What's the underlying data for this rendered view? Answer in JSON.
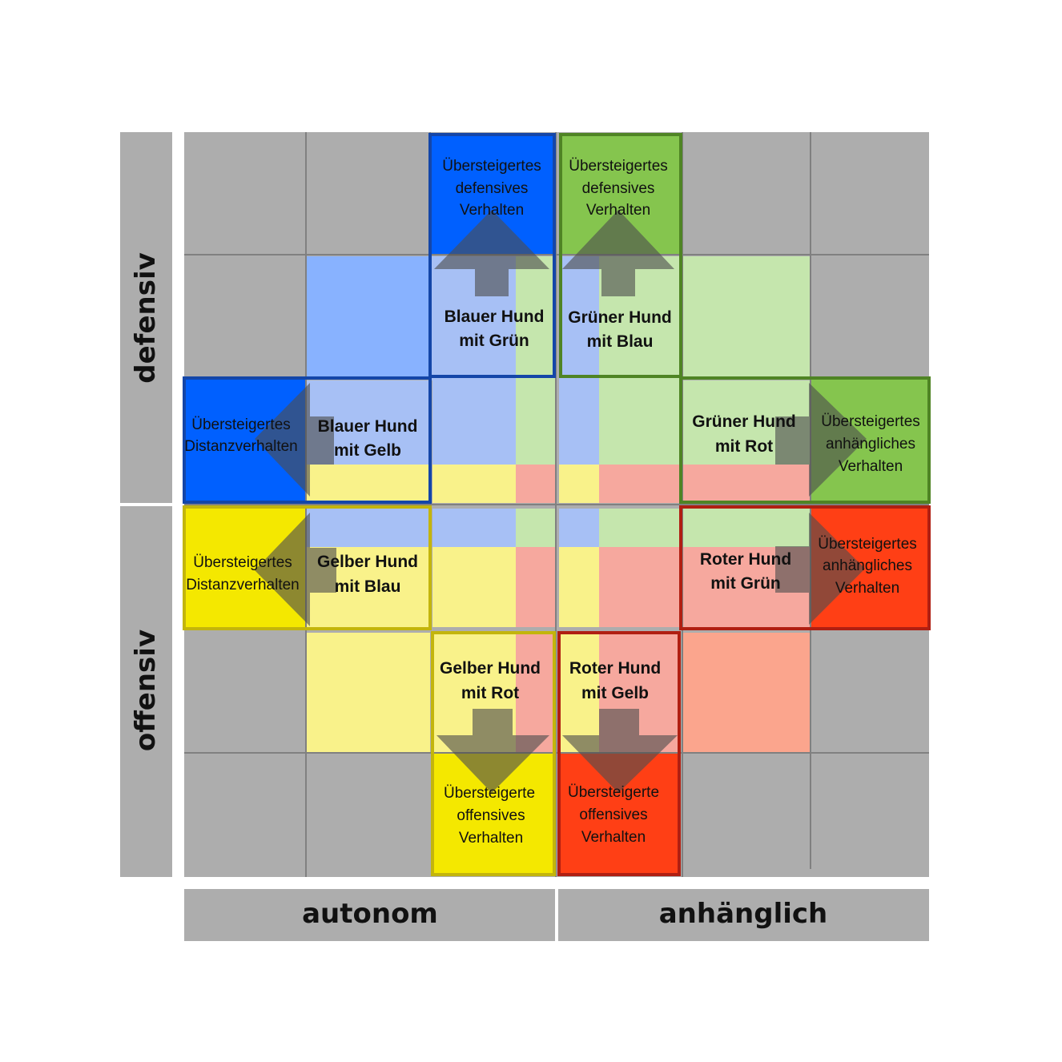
{
  "axes": {
    "y_top": "defensiv",
    "y_bottom": "offensiv",
    "x_left": "autonom",
    "x_right": "anhänglich"
  },
  "colors": {
    "grey_cell": "#adadad",
    "grid_line": "#808080",
    "blue": "#0060ff",
    "green": "#85c54e",
    "yellow": "#f4e800",
    "red": "#ff3f15",
    "light_blue": "#88b2ff",
    "light_green": "#c5e6ad",
    "light_yellow": "#f9f28a",
    "light_red": "#f6a89e",
    "light_salmon": "#fba58d",
    "arrow": "#4d4d4d",
    "border_blue": "#1446a8",
    "border_green": "#4f8424",
    "border_yellow": "#c3b50c",
    "border_red": "#b01f12"
  },
  "dogs": {
    "blue_green": [
      "Blauer Hund",
      "mit Grün"
    ],
    "green_blue": [
      "Grüner Hund",
      "mit Blau"
    ],
    "blue_yellow": [
      "Blauer Hund",
      "mit Gelb"
    ],
    "green_red": [
      "Grüner Hund",
      "mit Rot"
    ],
    "yellow_blue": [
      "Gelber Hund",
      "mit Blau"
    ],
    "red_green": [
      "Roter Hund",
      "mit Grün"
    ],
    "yellow_red": [
      "Gelber Hund",
      "mit Rot"
    ],
    "red_yellow": [
      "Roter Hund",
      "mit Gelb"
    ]
  },
  "behaviors": {
    "top_blue": [
      "Übersteigertes",
      "defensives",
      "Verhalten"
    ],
    "top_green": [
      "Übersteigertes",
      "defensives",
      "Verhalten"
    ],
    "left_blue": [
      "Übersteigertes",
      "Distanzverhalten"
    ],
    "left_yellow": [
      "Übersteigertes",
      "Distanzverhalten"
    ],
    "right_green": [
      "Übersteigertes",
      "anhängliches",
      "Verhalten"
    ],
    "right_red": [
      "Übersteigertes",
      "anhängliches",
      "Verhalten"
    ],
    "bottom_yellow": [
      "Übersteigerte",
      "offensives",
      "Verhalten"
    ],
    "bottom_red": [
      "Übersteigerte",
      "offensives",
      "Verhalten"
    ]
  }
}
